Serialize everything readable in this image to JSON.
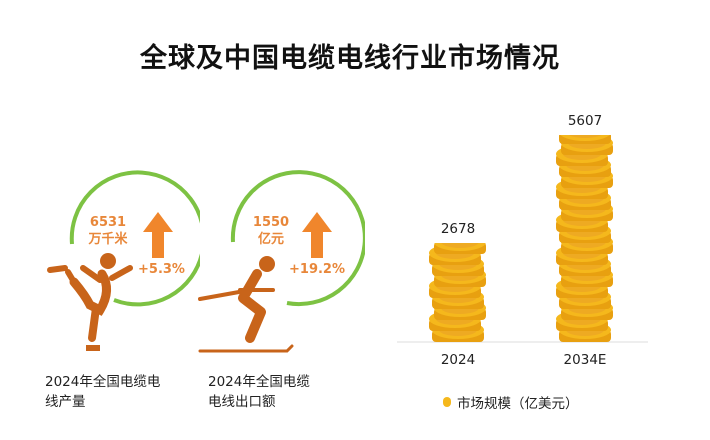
{
  "title": "全球及中国电缆电线行业市场情况",
  "stats": [
    {
      "value": "6531",
      "unit": "万千米",
      "change": "+5.3%",
      "caption_line1": "2024年全国电缆电",
      "caption_line2": "线产量",
      "icon": "figure-skater-icon"
    },
    {
      "value": "1550",
      "unit": "亿元",
      "change": "+19.2%",
      "caption_line1": "2024年全国电缆",
      "caption_line2": "电线出口额",
      "icon": "skier-icon"
    }
  ],
  "colors": {
    "arc": "#7dc243",
    "arrow": "#f0862c",
    "figure": "#c8641a",
    "coin": "#f5b81c",
    "coin_edge": "#e8a010"
  },
  "chart_data": {
    "type": "bar",
    "categories": [
      "2024",
      "2034E"
    ],
    "values": [
      2678,
      5607
    ],
    "value_labels": [
      "2678",
      "5607"
    ],
    "series": [
      {
        "name": "市场规模（亿美元）",
        "values": [
          2678,
          5607
        ]
      }
    ],
    "xlabel": "",
    "ylabel": "",
    "ylim": [
      0,
      5607
    ],
    "grid": false,
    "legend": "bottom",
    "bar_style": "coin stacks"
  }
}
